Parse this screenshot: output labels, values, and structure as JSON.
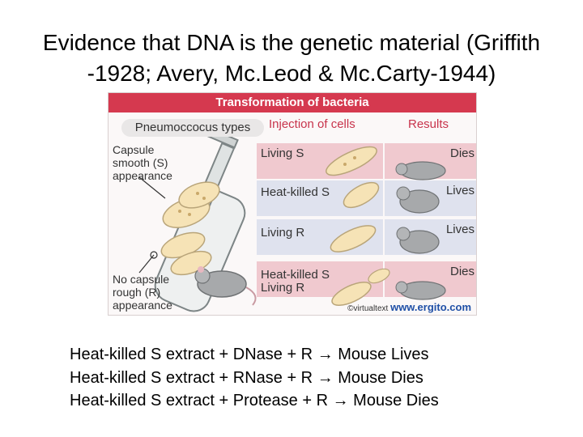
{
  "slide": {
    "title_line1": "Evidence that DNA is the genetic material (Griffith",
    "title_line2": "-1928; Avery, Mc.Leod & Mc.Carty-1944)"
  },
  "figure": {
    "title": "Transformation of bacteria",
    "pneumococcus_types": "Pneumoccocus types",
    "header_injection": "Injection of cells",
    "header_results": "Results",
    "capsule_label": [
      "Capsule",
      "smooth (S)",
      "appearance"
    ],
    "no_capsule_label": [
      "No capsule",
      "rough (R)",
      "appearance"
    ],
    "rows": [
      {
        "label": "Living S",
        "label2": "",
        "result": "Dies"
      },
      {
        "label": "Heat-killed S",
        "label2": "",
        "result": "Lives"
      },
      {
        "label": "Living R",
        "label2": "",
        "result": "Lives"
      },
      {
        "label": "Heat-killed S",
        "label2": "Living R",
        "result": "Dies"
      }
    ],
    "credit_prefix": "©virtualtext",
    "credit_brand": "www.ergito.com"
  },
  "statements": [
    {
      "prefix": "Heat-killed S extract + DNase + R",
      "arrow": "→",
      "suffix": "Mouse Lives"
    },
    {
      "prefix": "Heat-killed S extract + RNase + R",
      "arrow": "→",
      "suffix": "Mouse Dies"
    },
    {
      "prefix": "Heat-killed S extract + Protease + R",
      "arrow": "→",
      "suffix": "Mouse Dies"
    }
  ],
  "colors": {
    "title_band": "#d5394f",
    "row_pink": "#f0c9cf",
    "row_blue": "#dfe2ee",
    "header_text": "#c8344c",
    "bacteria": "#f6e3b6"
  }
}
